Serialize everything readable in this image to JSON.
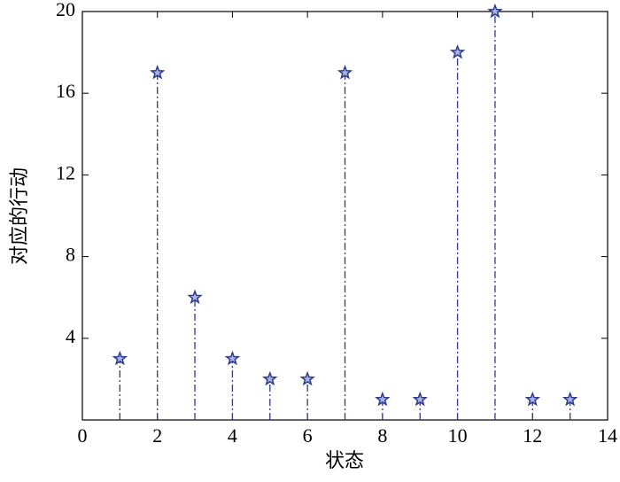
{
  "chart_data": {
    "type": "stem",
    "xlabel": "状态",
    "ylabel": "对应的行动",
    "x": [
      1,
      2,
      3,
      4,
      5,
      6,
      7,
      8,
      9,
      10,
      11,
      12,
      13
    ],
    "values": [
      3,
      17,
      6,
      3,
      2,
      2,
      17,
      1,
      1,
      18,
      20,
      1,
      1
    ],
    "color": "#2e3a8c",
    "xlim": [
      0,
      14
    ],
    "xticks": [
      0,
      2,
      4,
      6,
      8,
      10,
      12,
      14
    ],
    "ylim": [
      0,
      20
    ],
    "yticks": [
      4,
      8,
      12,
      16,
      20
    ]
  }
}
